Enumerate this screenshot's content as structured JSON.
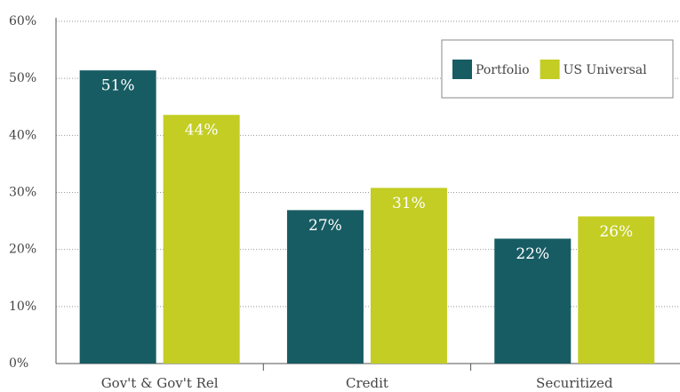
{
  "chart_data": {
    "type": "bar",
    "categories": [
      "Gov't & Gov't Rel",
      "Credit",
      "Securitized"
    ],
    "series": [
      {
        "name": "Portfolio",
        "color": "#175c63",
        "values": [
          51.4,
          26.9,
          21.9
        ],
        "value_labels": [
          "51%",
          "27%",
          "22%"
        ]
      },
      {
        "name": "US Universal",
        "color": "#c3cd23",
        "values": [
          43.6,
          30.8,
          25.8
        ],
        "value_labels": [
          "44%",
          "31%",
          "26%"
        ]
      }
    ],
    "ylim": [
      0,
      60
    ],
    "yticks": [
      {
        "value": 0,
        "label": "0%"
      },
      {
        "value": 10,
        "label": "10%"
      },
      {
        "value": 20,
        "label": "20%"
      },
      {
        "value": 30,
        "label": "30%"
      },
      {
        "value": 40,
        "label": "40%"
      },
      {
        "value": 50,
        "label": "50%"
      },
      {
        "value": 60,
        "label": "60%"
      }
    ],
    "grid": true,
    "legend": "top-right"
  }
}
